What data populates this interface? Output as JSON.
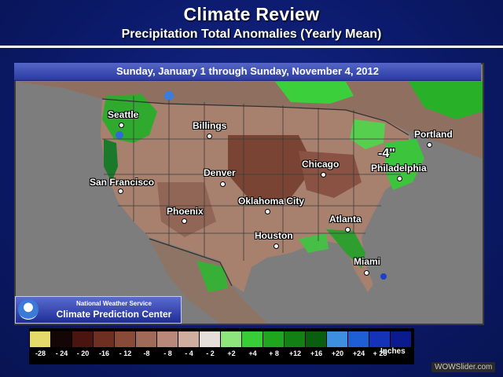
{
  "slide": {
    "title": "Climate Review",
    "subtitle": "Precipitation Total Anomalies (Yearly Mean)"
  },
  "map": {
    "date_range": "Sunday, January 1 through Sunday, November 4, 2012",
    "annotation": "-4\"",
    "cities": [
      {
        "name": "Seattle"
      },
      {
        "name": "Billings"
      },
      {
        "name": "Portland"
      },
      {
        "name": "Chicago"
      },
      {
        "name": "Philadelphia"
      },
      {
        "name": "Denver"
      },
      {
        "name": "San Francisco"
      },
      {
        "name": "Oklahoma City"
      },
      {
        "name": "Phoenix"
      },
      {
        "name": "Atlanta"
      },
      {
        "name": "Houston"
      },
      {
        "name": "Miami"
      }
    ]
  },
  "credit": {
    "agency": "National Weather Service",
    "center": "Climate Prediction Center"
  },
  "legend": {
    "unit": "Inches",
    "bins": [
      {
        "label": "-28",
        "color": "#e6d96b"
      },
      {
        "label": "- 24",
        "color": "#140606"
      },
      {
        "label": "- 20",
        "color": "#4a1410"
      },
      {
        "label": "-16",
        "color": "#6e2e22"
      },
      {
        "label": "- 12",
        "color": "#8a4a3a"
      },
      {
        "label": "-8",
        "color": "#a06a58"
      },
      {
        "label": "- 8",
        "color": "#b8887a"
      },
      {
        "label": "- 4",
        "color": "#cfae9f"
      },
      {
        "label": "- 2",
        "color": "#e6ded8"
      },
      {
        "label": "+2",
        "color": "#8ee57c"
      },
      {
        "label": "+4",
        "color": "#38cc36"
      },
      {
        "label": "+ 8",
        "color": "#1ea71e"
      },
      {
        "label": "+12",
        "color": "#128012"
      },
      {
        "label": "+16",
        "color": "#0a5e10"
      },
      {
        "label": "+20",
        "color": "#3f8fe0"
      },
      {
        "label": "+24",
        "color": "#1f5fd6"
      },
      {
        "label": "+ 28",
        "color": "#1533b8"
      },
      {
        "label": "",
        "color": "#0b1a8f"
      }
    ]
  },
  "watermark": "WOWSlider.com"
}
